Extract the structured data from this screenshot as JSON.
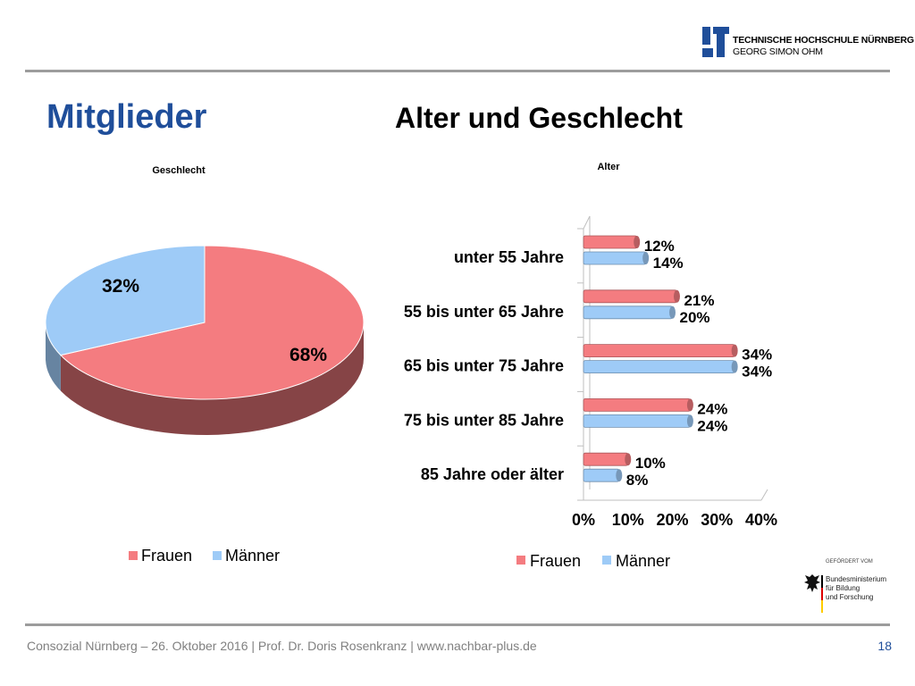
{
  "header": {
    "logo_line1": "TECHNISCHE HOCHSCHULE NÜRNBERG",
    "logo_line2": "GEORG SIMON OHM",
    "page_title": "Mitglieder",
    "chart_heading": "Alter und Geschlecht"
  },
  "footer": {
    "text": "Consozial Nürnberg – 26. Oktober 2016 | Prof. Dr. Doris Rosenkranz  | www.nachbar-plus.de",
    "page_number": "18"
  },
  "sponsor": {
    "label": "GEFÖRDERT VOM",
    "name_lines": [
      "Bundesministerium",
      "für Bildung",
      "und Forschung"
    ]
  },
  "colors": {
    "frauen": "#f47c80",
    "maenner": "#9ecbf7",
    "title_blue": "#1f4e9a"
  },
  "chart_data": [
    {
      "type": "pie",
      "title": "Geschlecht",
      "labels": [
        "Frauen",
        "Männer"
      ],
      "values": [
        68,
        32
      ],
      "value_labels": [
        "68%",
        "32%"
      ],
      "legend": [
        "Frauen",
        "Männer"
      ],
      "legend_position": "bottom"
    },
    {
      "type": "bar",
      "orientation": "horizontal",
      "title": "Alter",
      "categories": [
        "unter 55 Jahre",
        "55 bis unter 65 Jahre",
        "65 bis unter 75 Jahre",
        "75 bis unter 85 Jahre",
        "85 Jahre oder älter"
      ],
      "series": [
        {
          "name": "Frauen",
          "values": [
            12,
            21,
            34,
            24,
            10
          ]
        },
        {
          "name": "Männer",
          "values": [
            14,
            20,
            34,
            24,
            8
          ]
        }
      ],
      "xlim": [
        0,
        40
      ],
      "x_ticks": [
        "0%",
        "10%",
        "20%",
        "30%",
        "40%"
      ],
      "legend": [
        "Frauen",
        "Männer"
      ],
      "legend_position": "bottom"
    }
  ]
}
